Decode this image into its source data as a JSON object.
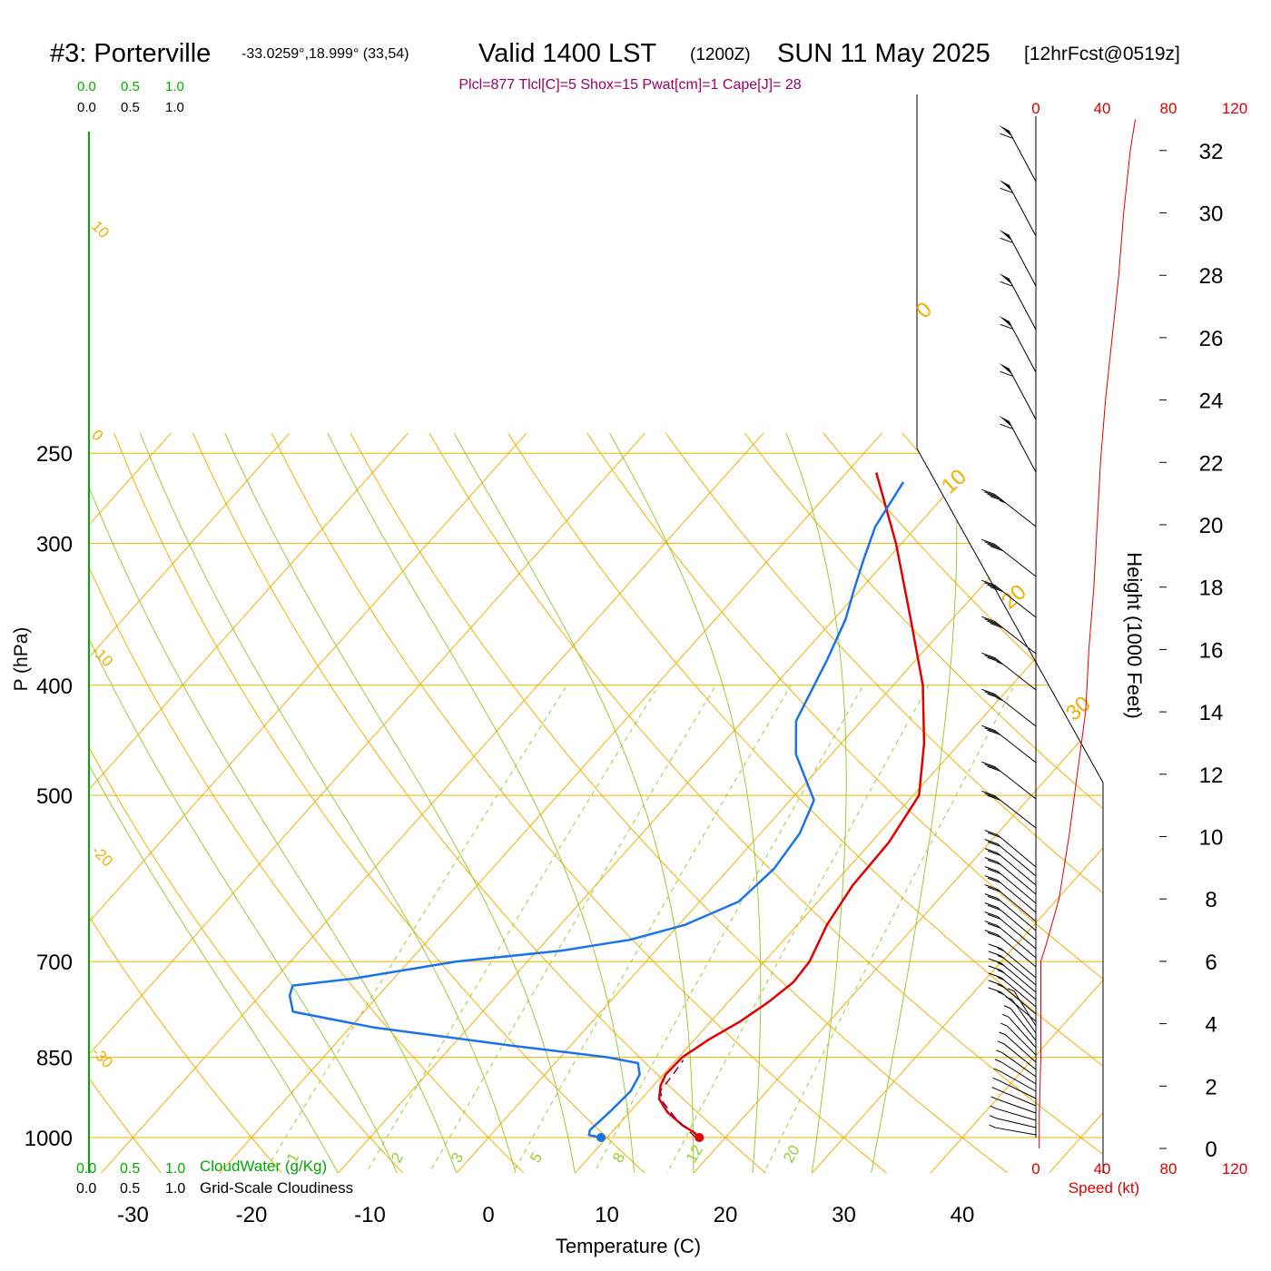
{
  "header": {
    "site": "#3: Porterville",
    "coords": "-33.0259°,18.999° (33,54)",
    "valid": "Valid 1400 LST",
    "zulu": "(1200Z)",
    "date": "SUN 11 May 2025",
    "forecast": "[12hrFcst@0519z]",
    "indices": "Plcl=877 Tlcl[C]=5 Shox=15 Pwat[cm]=1 Cape[J]= 28"
  },
  "labels": {
    "y_axis": "P (hPa)",
    "x_axis": "Temperature (C)",
    "height_axis": "Height (1000 Feet)",
    "cloudwater": "CloudWater (g/Kg)",
    "cloudiness": "Grid-Scale Cloudiness",
    "speed": "Speed (kt)"
  },
  "scales": {
    "top_green": [
      "0.0",
      "0.5",
      "1.0"
    ],
    "top_black": [
      "0.0",
      "0.5",
      "1.0"
    ],
    "bottom_green": [
      "0.0",
      "0.5",
      "1.0"
    ],
    "bottom_black": [
      "0.0",
      "0.5",
      "1.0"
    ],
    "speed_ticks": [
      "0",
      "40",
      "80",
      "120"
    ]
  },
  "colors": {
    "temperature": "#e00000",
    "dewpoint": "#1a73e8",
    "parcel": "#800040",
    "isobar": "#f0b000",
    "mixing": "#99cc33",
    "indices": "#990066",
    "speed": "#dd0000",
    "cloudwater": "#00aa00"
  },
  "chart_data": {
    "type": "line",
    "pressure_ticks": [
      250,
      300,
      400,
      500,
      700,
      850,
      1000
    ],
    "temp_ticks": [
      -30,
      -20,
      -10,
      0,
      10,
      20,
      30,
      40
    ],
    "height_ticks": [
      0,
      2,
      4,
      6,
      8,
      10,
      12,
      14,
      16,
      18,
      20,
      22,
      24,
      26,
      28,
      30,
      32
    ],
    "isotherm_labels": [
      "10",
      "0",
      "-10",
      "-20",
      "-30",
      "0",
      "10",
      "20",
      "30"
    ],
    "mixing_ratio_labels": [
      "1",
      "2",
      "3",
      "5",
      "8",
      "12",
      "20"
    ],
    "series": [
      {
        "name": "Temperature",
        "points": [
          [
            1000,
            17.8
          ],
          [
            990,
            17.0
          ],
          [
            975,
            15.4
          ],
          [
            950,
            13.2
          ],
          [
            925,
            11.5
          ],
          [
            900,
            10.6
          ],
          [
            880,
            10.2
          ],
          [
            850,
            10.3
          ],
          [
            820,
            11.2
          ],
          [
            790,
            12.5
          ],
          [
            760,
            13.4
          ],
          [
            730,
            14.0
          ],
          [
            700,
            13.8
          ],
          [
            650,
            12.5
          ],
          [
            600,
            11.7
          ],
          [
            550,
            11.5
          ],
          [
            500,
            10.5
          ],
          [
            450,
            7.0
          ],
          [
            400,
            2.5
          ],
          [
            350,
            -3.5
          ],
          [
            300,
            -10.5
          ],
          [
            260,
            -17.5
          ]
        ]
      },
      {
        "name": "Dewpoint",
        "points": [
          [
            1000,
            9.5
          ],
          [
            995,
            8.3
          ],
          [
            985,
            8.0
          ],
          [
            950,
            8.3
          ],
          [
            910,
            8.5
          ],
          [
            880,
            8.0
          ],
          [
            860,
            7.0
          ],
          [
            850,
            4.0
          ],
          [
            830,
            -5.0
          ],
          [
            800,
            -18.0
          ],
          [
            775,
            -26.0
          ],
          [
            750,
            -27.5
          ],
          [
            735,
            -28.0
          ],
          [
            725,
            -23.5
          ],
          [
            700,
            -16.0
          ],
          [
            685,
            -8.0
          ],
          [
            670,
            -3.0
          ],
          [
            650,
            0.5
          ],
          [
            620,
            3.3
          ],
          [
            580,
            3.8
          ],
          [
            540,
            3.3
          ],
          [
            505,
            2.0
          ],
          [
            460,
            -3.0
          ],
          [
            430,
            -5.5
          ],
          [
            380,
            -7.5
          ],
          [
            350,
            -9.0
          ],
          [
            330,
            -10.5
          ],
          [
            310,
            -12.0
          ],
          [
            290,
            -13.5
          ],
          [
            265,
            -14.5
          ]
        ]
      },
      {
        "name": "Parcel",
        "points": [
          [
            1000,
            17.5
          ],
          [
            960,
            14.2
          ],
          [
            930,
            12.0
          ],
          [
            910,
            11.0
          ],
          [
            877,
            10.8
          ],
          [
            855,
            10.6
          ]
        ]
      }
    ],
    "surface_markers": {
      "temperature": 17.8,
      "dewpoint": 9.5
    },
    "wind_speed_profile": [
      [
        0,
        2
      ],
      [
        1000,
        2
      ],
      [
        3000,
        3
      ],
      [
        6000,
        3
      ],
      [
        6500,
        6
      ],
      [
        8000,
        14
      ],
      [
        10000,
        20
      ],
      [
        12000,
        25
      ],
      [
        14000,
        30
      ],
      [
        16000,
        32
      ],
      [
        18000,
        35
      ],
      [
        20000,
        37
      ],
      [
        22000,
        39
      ],
      [
        24000,
        42
      ],
      [
        26000,
        46
      ],
      [
        28000,
        50
      ],
      [
        30000,
        53
      ],
      [
        32000,
        57
      ],
      [
        33000,
        60
      ]
    ],
    "height_range_kft": [
      -0.6,
      33.4
    ],
    "speed_range_kt": [
      0,
      120
    ]
  }
}
